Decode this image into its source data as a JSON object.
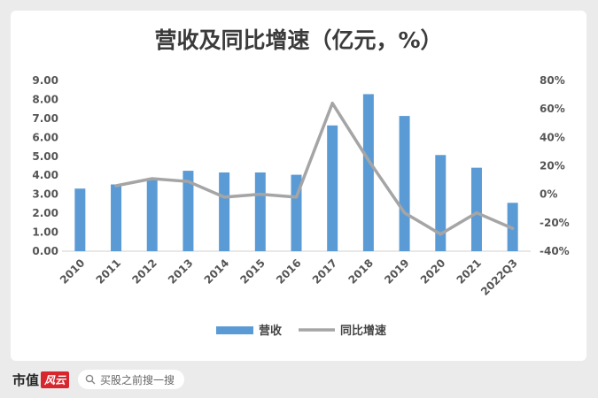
{
  "chart_data": {
    "type": "bar+line",
    "title": "营收及同比增速（亿元，%）",
    "categories": [
      "2010",
      "2011",
      "2012",
      "2013",
      "2014",
      "2015",
      "2016",
      "2017",
      "2018",
      "2019",
      "2020",
      "2021",
      "2022Q3"
    ],
    "series": [
      {
        "name": "营收",
        "type": "bar",
        "axis": "left",
        "color": "#5b9bd5",
        "values": [
          3.3,
          3.52,
          3.85,
          4.24,
          4.15,
          4.15,
          4.03,
          6.63,
          8.28,
          7.13,
          5.07,
          4.4,
          2.55
        ]
      },
      {
        "name": "同比增速",
        "type": "line",
        "axis": "right",
        "color": "#a5a5a5",
        "values": [
          null,
          6,
          11,
          9,
          -2,
          0,
          -2,
          64,
          24,
          -13,
          -28,
          -13,
          -24
        ]
      }
    ],
    "y_left": {
      "min": 0,
      "max": 9,
      "step": 1,
      "ticks": [
        "0.00",
        "1.00",
        "2.00",
        "3.00",
        "4.00",
        "5.00",
        "6.00",
        "7.00",
        "8.00",
        "9.00"
      ]
    },
    "y_right": {
      "min": -40,
      "max": 80,
      "step": 20,
      "ticks": [
        "-40%",
        "-20%",
        "0%",
        "20%",
        "40%",
        "60%",
        "80%"
      ]
    },
    "legend": {
      "position": "bottom-center",
      "items": [
        "营收",
        "同比增速"
      ]
    },
    "grid": false
  },
  "footer": {
    "brand": "市值",
    "brand_seal": "风云",
    "search_text": "买股之前搜一搜"
  },
  "colors": {
    "bar": "#5b9bd5",
    "line": "#a5a5a5",
    "brand_red": "#d7262e"
  },
  "icons": {
    "search": "search-icon"
  }
}
